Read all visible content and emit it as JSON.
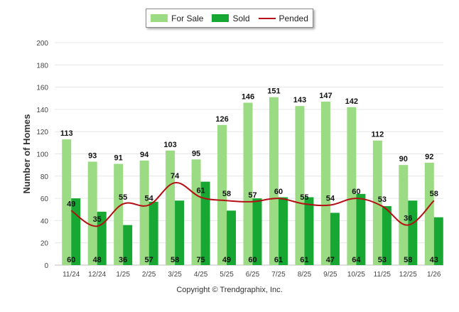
{
  "chart_data": {
    "type": "bar",
    "ylabel": "Number of Homes",
    "xlabel": "",
    "ylim": [
      0,
      200
    ],
    "yticks": [
      0,
      20,
      40,
      60,
      80,
      100,
      120,
      140,
      160,
      180,
      200
    ],
    "grid": true,
    "legend_position": "top-center",
    "categories": [
      "11/24",
      "12/24",
      "1/25",
      "2/25",
      "3/25",
      "4/25",
      "5/25",
      "6/25",
      "7/25",
      "8/25",
      "9/25",
      "10/25",
      "11/25",
      "12/25",
      "1/26"
    ],
    "series": [
      {
        "name": "For Sale",
        "kind": "bar",
        "color": "#9bdb83",
        "values": [
          113,
          93,
          91,
          94,
          103,
          95,
          126,
          146,
          151,
          143,
          147,
          142,
          112,
          90,
          92
        ]
      },
      {
        "name": "Sold",
        "kind": "bar",
        "color": "#16a832",
        "values": [
          60,
          48,
          36,
          57,
          58,
          75,
          49,
          60,
          61,
          61,
          47,
          64,
          53,
          58,
          43
        ]
      },
      {
        "name": "Pended",
        "kind": "line",
        "color": "#b40f14",
        "values": [
          49,
          35,
          55,
          54,
          74,
          61,
          58,
          57,
          60,
          55,
          54,
          60,
          53,
          36,
          58
        ]
      }
    ]
  },
  "footer": {
    "copyright": "Copyright © Trendgraphix, Inc."
  }
}
